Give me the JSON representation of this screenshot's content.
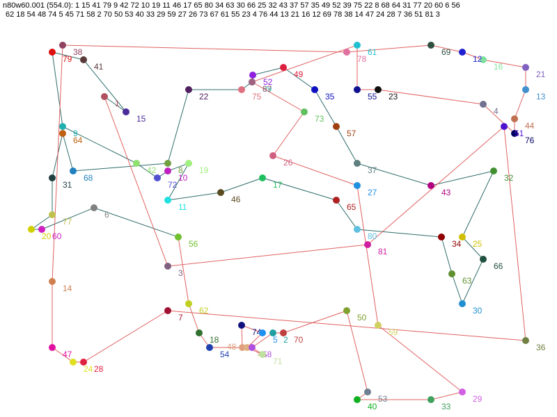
{
  "header": {
    "line1": "n80w60.001 (554.0): 1 15 41 79 9 42 72 10 19 11 46 17 65 80 34 63 30 66 25 32 43 37 57 35 49 52 39 75 22 8 68 64 31 77 20 60 6 56",
    "line2": "62 18 54 48 74 5 45 71 58 2 70 50 53 40 33 29 59 27 26 73 67 61 55 23 4 76 44 13 21 16 12 69 78 38 14 47 24 28 7 36 51 81 3"
  },
  "nodes": [
    {
      "label": "1",
      "color": "#b05060"
    },
    {
      "label": "15",
      "color": "#4b2a9a"
    },
    {
      "label": "41",
      "color": "#5a3a3a"
    },
    {
      "label": "79",
      "color": "#dd1111"
    },
    {
      "label": "9",
      "color": "#20b0b0"
    },
    {
      "label": "42",
      "color": "#90e070"
    },
    {
      "label": "72",
      "color": "#5050d0"
    },
    {
      "label": "10",
      "color": "#c020c0"
    },
    {
      "label": "19",
      "color": "#a0f080"
    },
    {
      "label": "11",
      "color": "#20e0e0"
    },
    {
      "label": "46",
      "color": "#5a4a20"
    },
    {
      "label": "17",
      "color": "#20c060"
    },
    {
      "label": "65",
      "color": "#b02020"
    },
    {
      "label": "80",
      "color": "#60c0e0"
    },
    {
      "label": "34",
      "color": "#900000"
    },
    {
      "label": "63",
      "color": "#609030"
    },
    {
      "label": "30",
      "color": "#2090d0"
    },
    {
      "label": "66",
      "color": "#205040"
    },
    {
      "label": "25",
      "color": "#d0c000"
    },
    {
      "label": "32",
      "color": "#409030"
    },
    {
      "label": "43",
      "color": "#b00080"
    },
    {
      "label": "37",
      "color": "#608080"
    },
    {
      "label": "57",
      "color": "#a04010"
    },
    {
      "label": "35",
      "color": "#1010c0"
    },
    {
      "label": "49",
      "color": "#dd2040"
    },
    {
      "label": "52",
      "color": "#9020e0"
    },
    {
      "label": "39",
      "color": "#20b0a0"
    },
    {
      "label": "75",
      "color": "#e07080"
    },
    {
      "label": "22",
      "color": "#502060"
    },
    {
      "label": "8",
      "color": "#70a040"
    },
    {
      "label": "68",
      "color": "#2080c0"
    },
    {
      "label": "64",
      "color": "#c06010"
    },
    {
      "label": "31",
      "color": "#204040"
    },
    {
      "label": "77",
      "color": "#c0c050"
    },
    {
      "label": "20",
      "color": "#d0d000"
    },
    {
      "label": "60",
      "color": "#d020c0"
    },
    {
      "label": "6",
      "color": "#808080"
    },
    {
      "label": "56",
      "color": "#70c030"
    },
    {
      "label": "62",
      "color": "#c0d020"
    },
    {
      "label": "18",
      "color": "#307030"
    },
    {
      "label": "54",
      "color": "#2040b0"
    },
    {
      "label": "48",
      "color": "#e0a080"
    },
    {
      "label": "74",
      "color": "#101080"
    },
    {
      "label": "5",
      "color": "#2090f0"
    },
    {
      "label": "45",
      "color": "#e0b080"
    },
    {
      "label": "58",
      "color": "#b050e0"
    },
    {
      "label": "71",
      "color": "#c0e0a0"
    },
    {
      "label": "2",
      "color": "#20a0a0"
    },
    {
      "label": "70",
      "color": "#c04040"
    },
    {
      "label": "50",
      "color": "#80a030"
    },
    {
      "label": "53",
      "color": "#708090"
    },
    {
      "label": "40",
      "color": "#10b020"
    },
    {
      "label": "33",
      "color": "#40a060"
    },
    {
      "label": "29",
      "color": "#d060e0"
    },
    {
      "label": "59",
      "color": "#d0d060"
    },
    {
      "label": "27",
      "color": "#2090e0"
    },
    {
      "label": "26",
      "color": "#d06080"
    },
    {
      "label": "73",
      "color": "#60c060"
    },
    {
      "label": "67",
      "color": "#a06080"
    },
    {
      "label": "61",
      "color": "#20c0d0"
    },
    {
      "label": "55",
      "color": "#101090"
    },
    {
      "label": "23",
      "color": "#101010"
    },
    {
      "label": "4",
      "color": "#707090"
    },
    {
      "label": "76",
      "color": "#000060"
    },
    {
      "label": "44",
      "color": "#c07050"
    },
    {
      "label": "13",
      "color": "#4090d0"
    },
    {
      "label": "21",
      "color": "#8060c0"
    },
    {
      "label": "16",
      "color": "#80e0a0"
    },
    {
      "label": "12",
      "color": "#2020d0"
    },
    {
      "label": "69",
      "color": "#305040"
    },
    {
      "label": "78",
      "color": "#e070a0"
    },
    {
      "label": "38",
      "color": "#904060"
    },
    {
      "label": "14",
      "color": "#d08050"
    },
    {
      "label": "47",
      "color": "#e010a0"
    },
    {
      "label": "24",
      "color": "#e0e020"
    },
    {
      "label": "28",
      "color": "#e02040"
    },
    {
      "label": "7",
      "color": "#a01030"
    },
    {
      "label": "36",
      "color": "#708040"
    },
    {
      "label": "51",
      "color": "#5010d0"
    },
    {
      "label": "81",
      "color": "#d020a0"
    },
    {
      "label": "3",
      "color": "#806080"
    }
  ]
}
